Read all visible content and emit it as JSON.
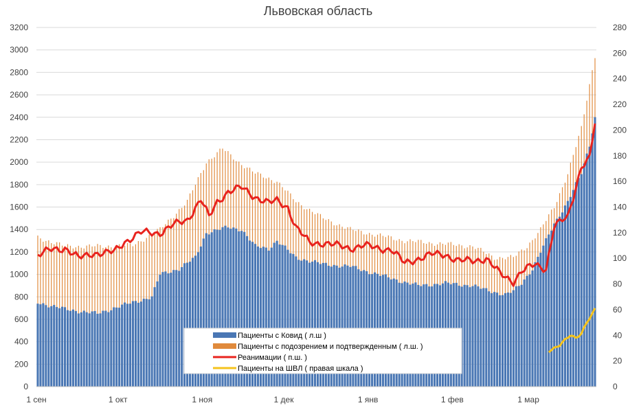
{
  "chart_data": {
    "type": "bar",
    "title": "Львовская область",
    "x_ticks": [
      "1 сен",
      "1 окт",
      "1 ноя",
      "1 дек",
      "1 янв",
      "1 фев",
      "1 мар"
    ],
    "y_left": {
      "min": 0,
      "max": 3200,
      "step": 200
    },
    "y_right": {
      "min": 0,
      "max": 280,
      "step": 20
    },
    "days": 206,
    "tick_days": [
      0,
      30,
      61,
      91,
      122,
      153,
      181
    ],
    "legend": [
      "Пациенты с Ковид ( л.ш )",
      "Пациенты с подозрением и подтвержденным ( л.ш. )",
      "Реанимации ( п.ш. )",
      "Пациенты на ШВЛ ( правая шкала )"
    ],
    "series": [
      {
        "name": "Пациенты с Ковид ( л.ш )",
        "axis": "left",
        "type": "bar",
        "color": "#4a77b4",
        "anchors": [
          [
            0,
            750
          ],
          [
            10,
            690
          ],
          [
            22,
            650
          ],
          [
            28,
            700
          ],
          [
            35,
            750
          ],
          [
            42,
            800
          ],
          [
            45,
            1000
          ],
          [
            52,
            1050
          ],
          [
            58,
            1150
          ],
          [
            62,
            1370
          ],
          [
            70,
            1420
          ],
          [
            75,
            1400
          ],
          [
            80,
            1250
          ],
          [
            85,
            1230
          ],
          [
            88,
            1300
          ],
          [
            95,
            1150
          ],
          [
            105,
            1090
          ],
          [
            115,
            1070
          ],
          [
            125,
            1000
          ],
          [
            135,
            930
          ],
          [
            140,
            900
          ],
          [
            150,
            920
          ],
          [
            160,
            900
          ],
          [
            165,
            860
          ],
          [
            172,
            820
          ],
          [
            175,
            850
          ],
          [
            178,
            920
          ],
          [
            182,
            1050
          ],
          [
            185,
            1200
          ],
          [
            190,
            1450
          ],
          [
            195,
            1650
          ],
          [
            200,
            1900
          ],
          [
            203,
            2150
          ],
          [
            205,
            2400
          ]
        ]
      },
      {
        "name": "Пациенты с подозрением и подтвержденным ( л.ш. )",
        "axis": "left",
        "type": "bar",
        "color": "#e08a3c",
        "anchors": [
          [
            0,
            1330
          ],
          [
            10,
            1250
          ],
          [
            25,
            1250
          ],
          [
            35,
            1260
          ],
          [
            45,
            1400
          ],
          [
            55,
            1650
          ],
          [
            62,
            2000
          ],
          [
            68,
            2120
          ],
          [
            74,
            2000
          ],
          [
            80,
            1900
          ],
          [
            88,
            1830
          ],
          [
            95,
            1650
          ],
          [
            105,
            1500
          ],
          [
            115,
            1400
          ],
          [
            125,
            1350
          ],
          [
            135,
            1300
          ],
          [
            150,
            1270
          ],
          [
            160,
            1250
          ],
          [
            168,
            1150
          ],
          [
            175,
            1150
          ],
          [
            180,
            1250
          ],
          [
            185,
            1400
          ],
          [
            190,
            1600
          ],
          [
            195,
            1900
          ],
          [
            200,
            2300
          ],
          [
            205,
            2950
          ]
        ]
      },
      {
        "name": "Реанимации ( п.ш. )",
        "axis": "right",
        "type": "line",
        "color": "#e8231e",
        "anchors": [
          [
            0,
            102
          ],
          [
            5,
            107
          ],
          [
            10,
            108
          ],
          [
            15,
            100
          ],
          [
            20,
            104
          ],
          [
            25,
            104
          ],
          [
            28,
            105
          ],
          [
            32,
            113
          ],
          [
            38,
            120
          ],
          [
            45,
            120
          ],
          [
            50,
            126
          ],
          [
            55,
            130
          ],
          [
            60,
            146
          ],
          [
            63,
            132
          ],
          [
            66,
            144
          ],
          [
            70,
            152
          ],
          [
            75,
            155
          ],
          [
            80,
            148
          ],
          [
            85,
            143
          ],
          [
            88,
            145
          ],
          [
            92,
            140
          ],
          [
            95,
            124
          ],
          [
            100,
            112
          ],
          [
            105,
            112
          ],
          [
            110,
            110
          ],
          [
            115,
            108
          ],
          [
            120,
            110
          ],
          [
            125,
            108
          ],
          [
            130,
            107
          ],
          [
            135,
            96
          ],
          [
            140,
            100
          ],
          [
            145,
            103
          ],
          [
            150,
            103
          ],
          [
            155,
            98
          ],
          [
            160,
            98
          ],
          [
            165,
            100
          ],
          [
            170,
            88
          ],
          [
            175,
            82
          ],
          [
            178,
            90
          ],
          [
            183,
            95
          ],
          [
            187,
            92
          ],
          [
            190,
            125
          ],
          [
            195,
            132
          ],
          [
            200,
            172
          ],
          [
            203,
            178
          ],
          [
            205,
            205
          ]
        ]
      },
      {
        "name": "Пациенты на ШВЛ ( правая шкала )",
        "axis": "right",
        "type": "line",
        "color": "#f5c31c",
        "anchors": [
          [
            188,
            28
          ],
          [
            192,
            32
          ],
          [
            196,
            40
          ],
          [
            198,
            38
          ],
          [
            200,
            42
          ],
          [
            202,
            50
          ],
          [
            205,
            60
          ],
          [
            206,
            66
          ]
        ]
      }
    ]
  }
}
